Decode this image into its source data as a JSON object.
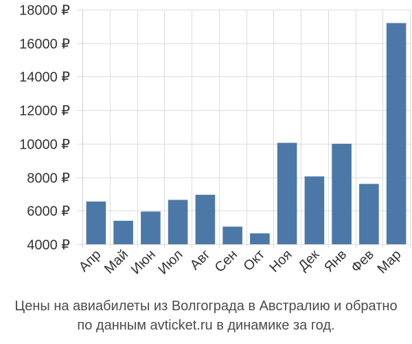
{
  "chart_data": {
    "type": "bar",
    "categories": [
      "Апр",
      "Май",
      "Июн",
      "Июл",
      "Авг",
      "Сен",
      "Окт",
      "Ноя",
      "Дек",
      "Янв",
      "Фев",
      "Мар"
    ],
    "values": [
      6550,
      5400,
      5950,
      6650,
      6950,
      5050,
      4650,
      10050,
      8050,
      10000,
      7600,
      17200
    ],
    "ylim": [
      4000,
      18000
    ],
    "yticks": [
      4000,
      6000,
      8000,
      10000,
      12000,
      14000,
      16000,
      18000
    ],
    "ytick_labels": [
      "4000 ₽",
      "6000 ₽",
      "8000 ₽",
      "10000 ₽",
      "12000 ₽",
      "14000 ₽",
      "16000 ₽",
      "18000 ₽"
    ],
    "grid": true,
    "bar_color": "#4c78a8",
    "title": "",
    "xlabel": "",
    "ylabel": ""
  },
  "caption": {
    "line1": "Цены на авиабилеты из Волгограда в Австралию и обратно",
    "line2": "по данным avticket.ru в динамике за год."
  }
}
